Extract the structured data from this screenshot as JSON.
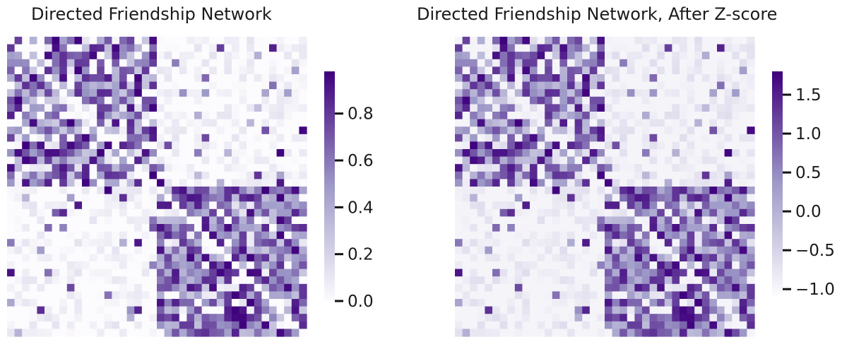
{
  "chart_data": [
    {
      "type": "heatmap",
      "title": "Directed Friendship Network",
      "xlabel": "",
      "ylabel": "",
      "n_nodes": 40,
      "community_size": 20,
      "colormap": "Purples",
      "colorbar": {
        "range": [
          0.0,
          0.98
        ],
        "ticks": [
          "0.0",
          "0.2",
          "0.4",
          "0.6",
          "0.8"
        ],
        "tick_values": [
          0.0,
          0.2,
          0.4,
          0.6,
          0.8
        ]
      },
      "block_densities": {
        "community_1_to_1": 0.75,
        "community_2_to_2": 0.85,
        "between_communities": 0.08
      },
      "diagonal_zero": true,
      "grid": false
    },
    {
      "type": "heatmap",
      "title": "Directed Friendship Network, After Z-score",
      "xlabel": "",
      "ylabel": "",
      "n_nodes": 40,
      "community_size": 20,
      "colormap": "Purples",
      "colorbar": {
        "range": [
          -1.08,
          1.8
        ],
        "ticks": [
          "−1.0",
          "−0.5",
          "0.0",
          "0.5",
          "1.0",
          "1.5"
        ],
        "tick_values": [
          -1.0,
          -0.5,
          0.0,
          0.5,
          1.0,
          1.5
        ]
      },
      "block_densities": {
        "community_1_to_1": 0.75,
        "community_2_to_2": 0.85,
        "between_communities": 0.08
      },
      "diagonal_zero": true,
      "grid": false
    }
  ],
  "colors": {
    "low": "#fcfbfd",
    "mid": "#9e9ac8",
    "high": "#3f007d",
    "tick": "#111111"
  }
}
